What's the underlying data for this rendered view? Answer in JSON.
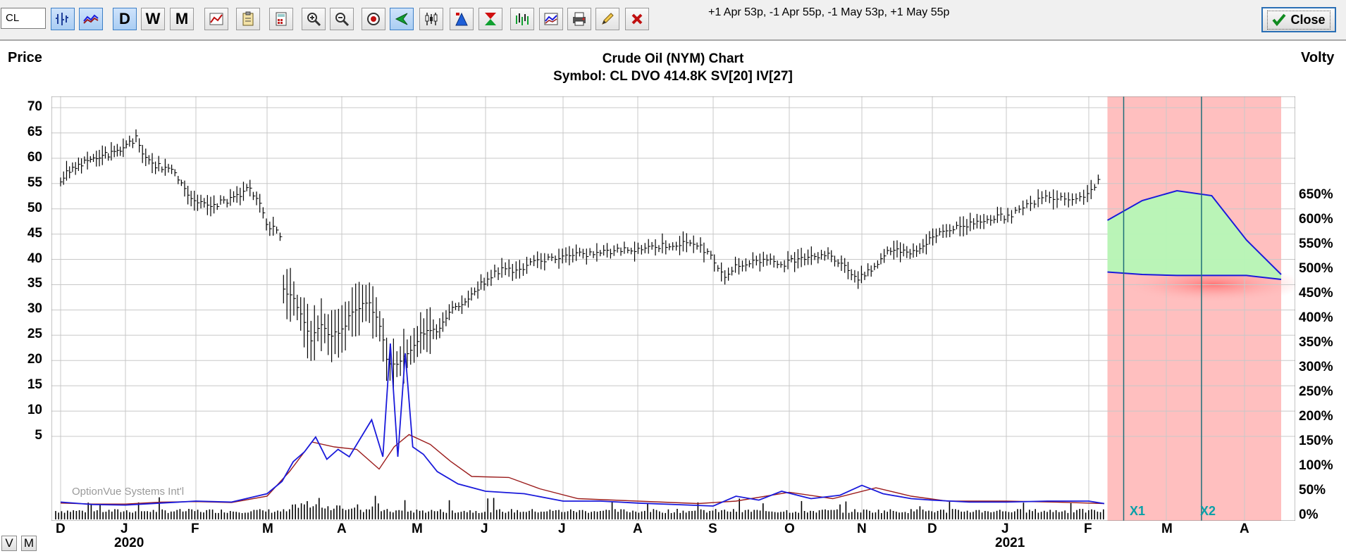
{
  "toolbar": {
    "symbol_value": "CL",
    "period_daily": "D",
    "period_weekly": "W",
    "period_monthly": "M",
    "spread_text": "+1 Apr 53p, -1 Apr 55p, -1 May 53p, +1 May 55p",
    "close_label": "Close"
  },
  "chart": {
    "left_axis_title": "Price",
    "right_axis_title": "Volty",
    "title": "Crude Oil (NYM) Chart",
    "subtitle": "Symbol:  CL   DVO 414.8K   SV[20]   IV[27]",
    "watermark": "OptionVue Systems Int'l",
    "x1_label": "X1",
    "x2_label": "X2",
    "v_button": "V",
    "m_button": "M",
    "colors": {
      "price": "#000000",
      "sv": "#9b1c1c",
      "iv": "#1a1adb",
      "future_zone": "#ffbfbf",
      "profit": "#b6f7b6",
      "grid": "#c8c8c8"
    }
  },
  "chart_data": {
    "type": "line",
    "y_left": {
      "title": "Price",
      "ticks": [
        70,
        65,
        60,
        55,
        50,
        45,
        40,
        35,
        30,
        25,
        20,
        15,
        10,
        5
      ],
      "range": [
        5,
        70
      ]
    },
    "y_right": {
      "title": "Volty",
      "ticks": [
        "650%",
        "600%",
        "550%",
        "500%",
        "450%",
        "400%",
        "350%",
        "300%",
        "250%",
        "200%",
        "150%",
        "100%",
        "50%",
        "0%"
      ],
      "range": [
        0,
        650
      ]
    },
    "x_months": [
      "D",
      "J",
      "F",
      "M",
      "A",
      "M",
      "J",
      "J",
      "A",
      "S",
      "O",
      "N",
      "D",
      "J",
      "F",
      "M",
      "A"
    ],
    "x_years": [
      {
        "label": "2020",
        "month_index": 1
      },
      {
        "label": "2021",
        "month_index": 13
      }
    ],
    "price_series": [
      {
        "m": 0.0,
        "v": 55.5
      },
      {
        "m": 0.15,
        "v": 58
      },
      {
        "m": 0.35,
        "v": 59
      },
      {
        "m": 0.6,
        "v": 60.5
      },
      {
        "m": 0.85,
        "v": 61
      },
      {
        "m": 1.0,
        "v": 62.5
      },
      {
        "m": 1.15,
        "v": 64
      },
      {
        "m": 1.25,
        "v": 60
      },
      {
        "m": 1.45,
        "v": 58.5
      },
      {
        "m": 1.6,
        "v": 58
      },
      {
        "m": 1.75,
        "v": 56
      },
      {
        "m": 1.9,
        "v": 53
      },
      {
        "m": 2.05,
        "v": 51
      },
      {
        "m": 2.2,
        "v": 50.5
      },
      {
        "m": 2.4,
        "v": 51.5
      },
      {
        "m": 2.6,
        "v": 52.5
      },
      {
        "m": 2.75,
        "v": 54
      },
      {
        "m": 2.9,
        "v": 51
      },
      {
        "m": 3.0,
        "v": 47
      },
      {
        "m": 3.1,
        "v": 46
      },
      {
        "m": 3.2,
        "v": 44
      },
      {
        "m": 3.22,
        "v": 34
      },
      {
        "m": 3.35,
        "v": 33
      },
      {
        "m": 3.5,
        "v": 27
      },
      {
        "m": 3.6,
        "v": 24
      },
      {
        "m": 3.7,
        "v": 27
      },
      {
        "m": 3.85,
        "v": 25
      },
      {
        "m": 4.0,
        "v": 26
      },
      {
        "m": 4.15,
        "v": 30
      },
      {
        "m": 4.35,
        "v": 31.5
      },
      {
        "m": 4.5,
        "v": 28
      },
      {
        "m": 4.6,
        "v": 20
      },
      {
        "m": 4.75,
        "v": 19.5
      },
      {
        "m": 4.9,
        "v": 22
      },
      {
        "m": 5.05,
        "v": 25
      },
      {
        "m": 5.3,
        "v": 26
      },
      {
        "m": 5.5,
        "v": 30
      },
      {
        "m": 5.8,
        "v": 33
      },
      {
        "m": 6.0,
        "v": 36
      },
      {
        "m": 6.2,
        "v": 38
      },
      {
        "m": 6.45,
        "v": 38
      },
      {
        "m": 6.7,
        "v": 40
      },
      {
        "m": 7.0,
        "v": 40.5
      },
      {
        "m": 7.3,
        "v": 41
      },
      {
        "m": 7.6,
        "v": 41.5
      },
      {
        "m": 7.9,
        "v": 42
      },
      {
        "m": 8.2,
        "v": 42.5
      },
      {
        "m": 8.5,
        "v": 43
      },
      {
        "m": 8.8,
        "v": 43
      },
      {
        "m": 9.0,
        "v": 40
      },
      {
        "m": 9.15,
        "v": 37
      },
      {
        "m": 9.3,
        "v": 38.5
      },
      {
        "m": 9.6,
        "v": 40
      },
      {
        "m": 9.9,
        "v": 39
      },
      {
        "m": 10.15,
        "v": 40.5
      },
      {
        "m": 10.5,
        "v": 41
      },
      {
        "m": 10.75,
        "v": 39
      },
      {
        "m": 10.95,
        "v": 36
      },
      {
        "m": 11.15,
        "v": 38
      },
      {
        "m": 11.4,
        "v": 42
      },
      {
        "m": 11.7,
        "v": 41.5
      },
      {
        "m": 11.9,
        "v": 43
      },
      {
        "m": 12.1,
        "v": 45.5
      },
      {
        "m": 12.4,
        "v": 46.5
      },
      {
        "m": 12.7,
        "v": 48
      },
      {
        "m": 13.0,
        "v": 48.5
      },
      {
        "m": 13.2,
        "v": 50
      },
      {
        "m": 13.4,
        "v": 52
      },
      {
        "m": 13.6,
        "v": 52.5
      },
      {
        "m": 13.85,
        "v": 52
      },
      {
        "m": 14.0,
        "v": 53.5
      },
      {
        "m": 14.15,
        "v": 56
      }
    ],
    "iv_series": [
      {
        "m": 0.0,
        "v": 28
      },
      {
        "m": 0.5,
        "v": 23
      },
      {
        "m": 1.0,
        "v": 22
      },
      {
        "m": 1.5,
        "v": 26
      },
      {
        "m": 2.0,
        "v": 30
      },
      {
        "m": 2.5,
        "v": 28
      },
      {
        "m": 3.0,
        "v": 45
      },
      {
        "m": 3.2,
        "v": 70
      },
      {
        "m": 3.35,
        "v": 110
      },
      {
        "m": 3.5,
        "v": 130
      },
      {
        "m": 3.65,
        "v": 160
      },
      {
        "m": 3.8,
        "v": 115
      },
      {
        "m": 3.95,
        "v": 135
      },
      {
        "m": 4.1,
        "v": 120
      },
      {
        "m": 4.4,
        "v": 195
      },
      {
        "m": 4.55,
        "v": 120
      },
      {
        "m": 4.65,
        "v": 350
      },
      {
        "m": 4.75,
        "v": 120
      },
      {
        "m": 4.85,
        "v": 330
      },
      {
        "m": 4.95,
        "v": 140
      },
      {
        "m": 5.1,
        "v": 125
      },
      {
        "m": 5.3,
        "v": 90
      },
      {
        "m": 5.6,
        "v": 65
      },
      {
        "m": 6.0,
        "v": 50
      },
      {
        "m": 6.5,
        "v": 45
      },
      {
        "m": 7.0,
        "v": 30
      },
      {
        "m": 7.5,
        "v": 30
      },
      {
        "m": 8.0,
        "v": 26
      },
      {
        "m": 8.5,
        "v": 23
      },
      {
        "m": 9.0,
        "v": 20
      },
      {
        "m": 9.3,
        "v": 40
      },
      {
        "m": 9.6,
        "v": 32
      },
      {
        "m": 9.9,
        "v": 50
      },
      {
        "m": 10.3,
        "v": 35
      },
      {
        "m": 10.7,
        "v": 42
      },
      {
        "m": 11.0,
        "v": 62
      },
      {
        "m": 11.3,
        "v": 45
      },
      {
        "m": 11.7,
        "v": 35
      },
      {
        "m": 12.0,
        "v": 32
      },
      {
        "m": 12.5,
        "v": 28
      },
      {
        "m": 13.0,
        "v": 28
      },
      {
        "m": 13.5,
        "v": 30
      },
      {
        "m": 14.0,
        "v": 30
      },
      {
        "m": 14.2,
        "v": 25
      }
    ],
    "sv_series": [
      {
        "m": 0.0,
        "v": 26
      },
      {
        "m": 0.5,
        "v": 24
      },
      {
        "m": 1.0,
        "v": 24
      },
      {
        "m": 1.5,
        "v": 28
      },
      {
        "m": 2.0,
        "v": 29
      },
      {
        "m": 2.5,
        "v": 27
      },
      {
        "m": 3.0,
        "v": 40
      },
      {
        "m": 3.3,
        "v": 90
      },
      {
        "m": 3.6,
        "v": 150
      },
      {
        "m": 3.9,
        "v": 140
      },
      {
        "m": 4.2,
        "v": 135
      },
      {
        "m": 4.5,
        "v": 95
      },
      {
        "m": 4.7,
        "v": 140
      },
      {
        "m": 4.9,
        "v": 165
      },
      {
        "m": 5.2,
        "v": 145
      },
      {
        "m": 5.5,
        "v": 110
      },
      {
        "m": 5.8,
        "v": 80
      },
      {
        "m": 6.3,
        "v": 78
      },
      {
        "m": 6.7,
        "v": 55
      },
      {
        "m": 7.2,
        "v": 35
      },
      {
        "m": 8.0,
        "v": 30
      },
      {
        "m": 8.8,
        "v": 25
      },
      {
        "m": 9.3,
        "v": 30
      },
      {
        "m": 10.0,
        "v": 48
      },
      {
        "m": 10.6,
        "v": 35
      },
      {
        "m": 11.2,
        "v": 57
      },
      {
        "m": 11.7,
        "v": 40
      },
      {
        "m": 12.2,
        "v": 30
      },
      {
        "m": 13.0,
        "v": 30
      },
      {
        "m": 13.6,
        "v": 28
      },
      {
        "m": 14.2,
        "v": 25
      }
    ],
    "volume_bars": "daily volume histogram along bottom axis",
    "projection": {
      "upper_curve_pct": [
        600,
        640,
        660,
        650,
        560,
        490
      ],
      "lower_curve_pct": [
        495,
        490,
        488,
        488,
        488,
        480
      ],
      "x1_month": 14.45,
      "x2_month": 15.45,
      "end_month": 16.4
    },
    "grid": true
  }
}
